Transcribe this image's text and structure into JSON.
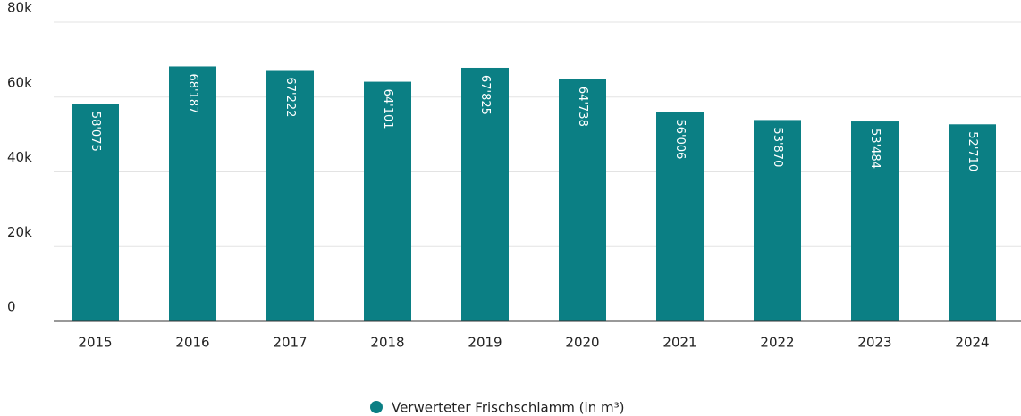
{
  "chart_data": {
    "type": "bar",
    "categories": [
      "2015",
      "2016",
      "2017",
      "2018",
      "2019",
      "2020",
      "2021",
      "2022",
      "2023",
      "2024"
    ],
    "series": [
      {
        "name": "Verwerteter Frischschlamm (in m³)",
        "color": "#0b7f84",
        "values": [
          58075,
          68187,
          67222,
          64101,
          67825,
          64738,
          56006,
          53870,
          53484,
          52710
        ],
        "value_labels": [
          "58'075",
          "68'187",
          "67'222",
          "64'101",
          "67'825",
          "64'738",
          "56'006",
          "53'870",
          "53'484",
          "52'710"
        ]
      }
    ],
    "ylim": [
      0,
      80000
    ],
    "yticks": [
      0,
      {
        "value": 20000,
        "label": "20k"
      },
      {
        "value": 40000,
        "label": "40k"
      },
      {
        "value": 60000,
        "label": "60k"
      },
      {
        "value": 80000,
        "label": "80k"
      }
    ],
    "grid": true,
    "legend": "bottom"
  }
}
